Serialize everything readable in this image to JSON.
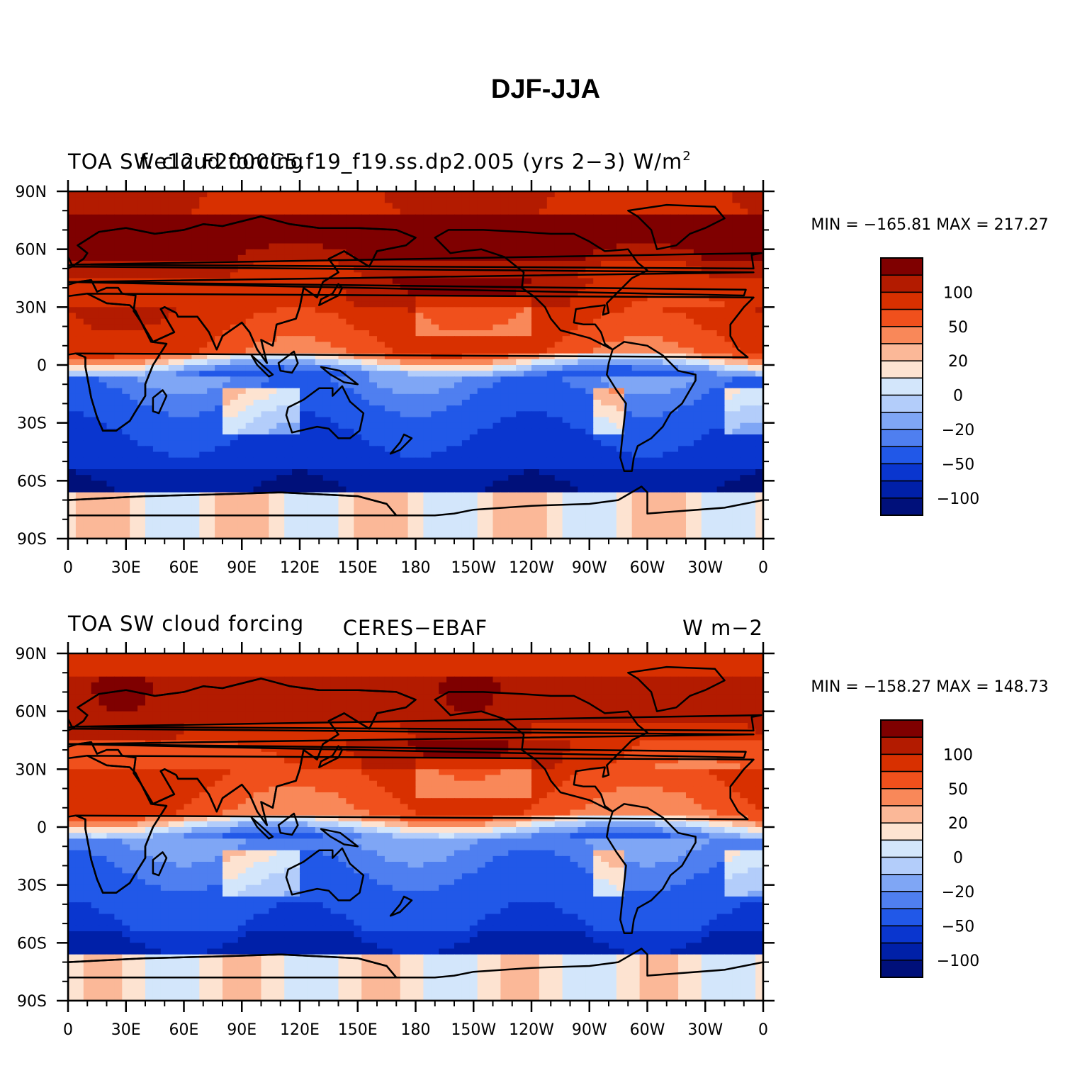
{
  "figure": {
    "title": "DJF-JJA"
  },
  "lon_ticks": [
    "0",
    "30E",
    "60E",
    "90E",
    "120E",
    "150E",
    "180",
    "150W",
    "120W",
    "90W",
    "60W",
    "30W",
    "0"
  ],
  "lat_ticks": [
    "90N",
    "60N",
    "30N",
    "0",
    "30S",
    "60S",
    "90S"
  ],
  "colorbar": {
    "labels": [
      "100",
      "50",
      "20",
      "0",
      "−20",
      "−50",
      "−100"
    ],
    "colors": [
      "#7f0000",
      "#b31b00",
      "#d83000",
      "#f0501c",
      "#f98859",
      "#fbb898",
      "#fde3d1",
      "#d3e6fb",
      "#b3cdfa",
      "#7fa6f5",
      "#4f7ff0",
      "#2158e8",
      "#0a36cf",
      "#0020a8",
      "#00107a"
    ]
  },
  "panels": [
    {
      "left_title": "TOA SW cloud forcing",
      "center_title": "f.e12.F2000C5.f19_f19.ss.dp2.005 (yrs 2−3) W/m",
      "superscript": "2",
      "right_title": "",
      "min_max": "MIN = −165.81  MAX = 217.27"
    },
    {
      "left_title": "TOA SW cloud forcing",
      "center_title": "CERES−EBAF",
      "right_title": "W m−2",
      "min_max": "MIN = −158.27  MAX = 148.73"
    }
  ],
  "chart_data": {
    "type": "heatmap",
    "title": "DJF-JJA",
    "units": [
      "W/m2",
      "W m-2"
    ],
    "lon_range": [
      0,
      360
    ],
    "lat_range": [
      -90,
      90
    ],
    "contour_levels": [
      -150,
      -125,
      -100,
      -75,
      -50,
      -35,
      -20,
      -10,
      0,
      10,
      20,
      35,
      50,
      75,
      100,
      125
    ],
    "series": [
      {
        "name": "f.e12.F2000C5.f19_f19.ss.dp2.005 (yrs 2−3)",
        "min": -165.81,
        "max": 217.27
      },
      {
        "name": "CERES−EBAF",
        "min": -158.27,
        "max": 148.73
      }
    ]
  }
}
